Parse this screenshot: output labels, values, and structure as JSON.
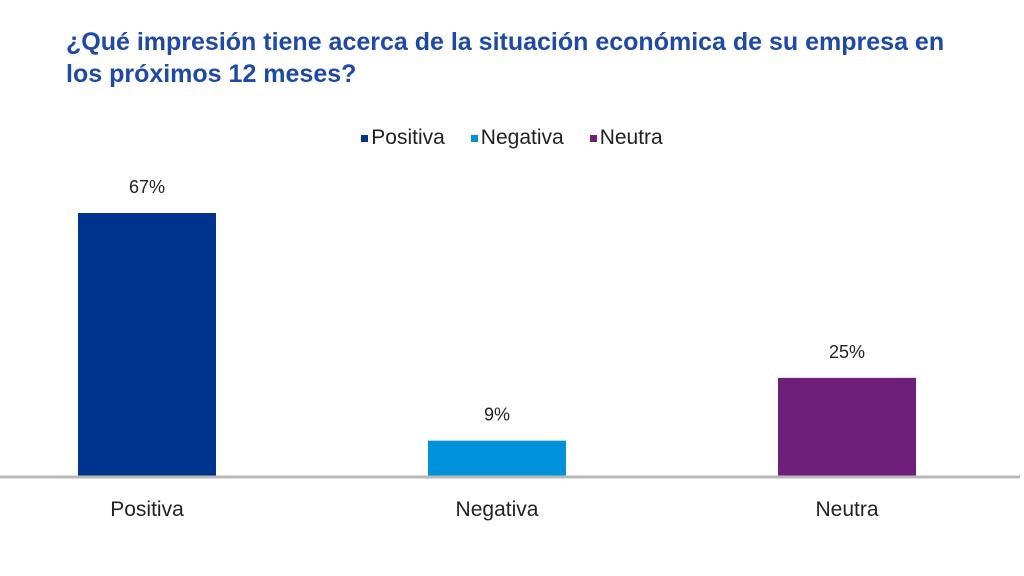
{
  "chart_data": {
    "type": "bar",
    "title": "¿Qué impresión tiene acerca de la situación económica de su empresa en los próximos 12 meses?",
    "categories": [
      "Positiva",
      "Negativa",
      "Neutra"
    ],
    "values": [
      67,
      9,
      25
    ],
    "data_labels": [
      "67%",
      "9%",
      "25%"
    ],
    "unit": "%",
    "colors": [
      "#00338d",
      "#0091da",
      "#6d1f7a"
    ],
    "legend": {
      "placement": "top",
      "entries": [
        "Positiva",
        "Negativa",
        "Neutra"
      ]
    },
    "grid": false,
    "ylim": [
      0,
      67
    ],
    "xlabel": "",
    "ylabel": ""
  }
}
